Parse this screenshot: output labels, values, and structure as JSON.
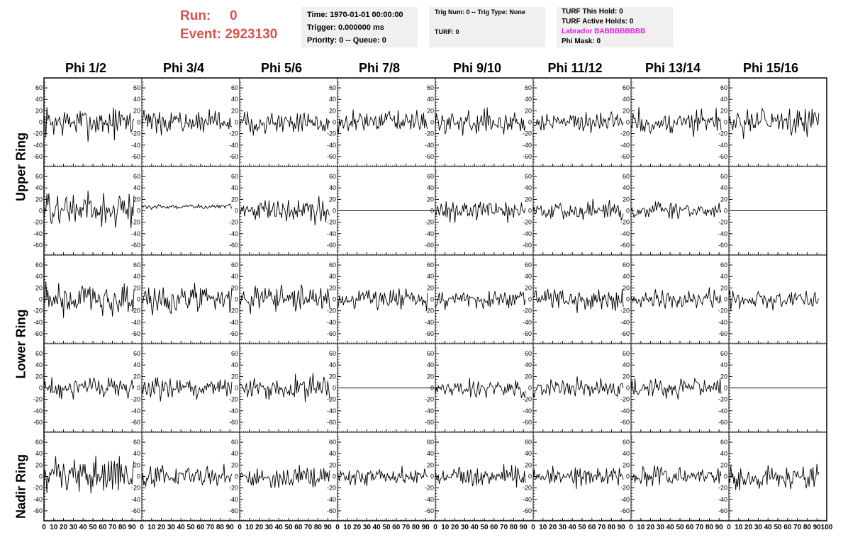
{
  "header": {
    "run_label": "Run:",
    "run_value": "0",
    "event_label": "Event:",
    "event_value": "2923130",
    "time_line": "Time: 1970-01-01 00:00:00",
    "trigger_line": "Trigger: 0.000000 ms",
    "priority_line": "Priority: 0 -- Queue: 0",
    "trig_line": "Trig Num: 0 -- Trig Type: None",
    "turf_line": "TURF: 0",
    "turf_hold_line": "TURF This Hold: 0",
    "turf_active_line": "TURF Active Holds: 0",
    "labrador_line": "Labrador BABBBBBBBB",
    "phi_mask_line": "Phi Mask: 0"
  },
  "chart_data": {
    "type": "line",
    "columns": [
      "Phi 1/2",
      "Phi 3/4",
      "Phi 5/6",
      "Phi 7/8",
      "Phi 9/10",
      "Phi 11/12",
      "Phi 13/14",
      "Phi 15/16"
    ],
    "rows": [
      "Upper Ring",
      "Lower Ring",
      "Nadir Ring"
    ],
    "row_labels_printed": [
      "Upper Ring",
      "Lower Ring",
      "Nadir Ring"
    ],
    "xlim": [
      0,
      100
    ],
    "ylim": [
      -70,
      70
    ],
    "x_ticks": [
      0,
      10,
      20,
      30,
      40,
      50,
      60,
      70,
      80,
      90,
      100
    ],
    "y_ticks": [
      -60,
      -40,
      -20,
      0,
      20,
      40,
      60
    ],
    "waveform_sample_count": 92,
    "panels": [
      {
        "row": 0,
        "col": 0,
        "amplitude": 40
      },
      {
        "row": 0,
        "col": 1,
        "amplitude": 28
      },
      {
        "row": 0,
        "col": 2,
        "amplitude": 28
      },
      {
        "row": 0,
        "col": 3,
        "amplitude": 26
      },
      {
        "row": 0,
        "col": 4,
        "amplitude": 28
      },
      {
        "row": 0,
        "col": 5,
        "amplitude": 26
      },
      {
        "row": 0,
        "col": 6,
        "amplitude": 32
      },
      {
        "row": 0,
        "col": 7,
        "amplitude": 34
      },
      {
        "row": 1,
        "col": 0,
        "amplitude": 45
      },
      {
        "row": 1,
        "col": 1,
        "amplitude": 6,
        "offset": 7
      },
      {
        "row": 1,
        "col": 2,
        "amplitude": 30
      },
      {
        "row": 1,
        "col": 3,
        "amplitude": 0
      },
      {
        "row": 1,
        "col": 4,
        "amplitude": 24
      },
      {
        "row": 1,
        "col": 5,
        "amplitude": 24
      },
      {
        "row": 1,
        "col": 6,
        "amplitude": 24
      },
      {
        "row": 1,
        "col": 7,
        "amplitude": 0
      },
      {
        "row": 2,
        "col": 0,
        "amplitude": 45
      },
      {
        "row": 2,
        "col": 1,
        "amplitude": 34
      },
      {
        "row": 2,
        "col": 2,
        "amplitude": 32
      },
      {
        "row": 2,
        "col": 3,
        "amplitude": 26
      },
      {
        "row": 2,
        "col": 4,
        "amplitude": 24
      },
      {
        "row": 2,
        "col": 5,
        "amplitude": 30
      },
      {
        "row": 2,
        "col": 6,
        "amplitude": 26
      },
      {
        "row": 2,
        "col": 7,
        "amplitude": 26
      },
      {
        "row": 3,
        "col": 0,
        "amplitude": 28
      },
      {
        "row": 3,
        "col": 1,
        "amplitude": 28
      },
      {
        "row": 3,
        "col": 2,
        "amplitude": 28
      },
      {
        "row": 3,
        "col": 3,
        "amplitude": 0
      },
      {
        "row": 3,
        "col": 4,
        "amplitude": 24
      },
      {
        "row": 3,
        "col": 5,
        "amplitude": 24
      },
      {
        "row": 3,
        "col": 6,
        "amplitude": 24
      },
      {
        "row": 3,
        "col": 7,
        "amplitude": 0
      },
      {
        "row": 4,
        "col": 0,
        "amplitude": 45
      },
      {
        "row": 4,
        "col": 1,
        "amplitude": 28
      },
      {
        "row": 4,
        "col": 2,
        "amplitude": 28
      },
      {
        "row": 4,
        "col": 3,
        "amplitude": 22
      },
      {
        "row": 4,
        "col": 4,
        "amplitude": 24
      },
      {
        "row": 4,
        "col": 5,
        "amplitude": 26
      },
      {
        "row": 4,
        "col": 6,
        "amplitude": 22
      },
      {
        "row": 4,
        "col": 7,
        "amplitude": 30
      }
    ]
  }
}
